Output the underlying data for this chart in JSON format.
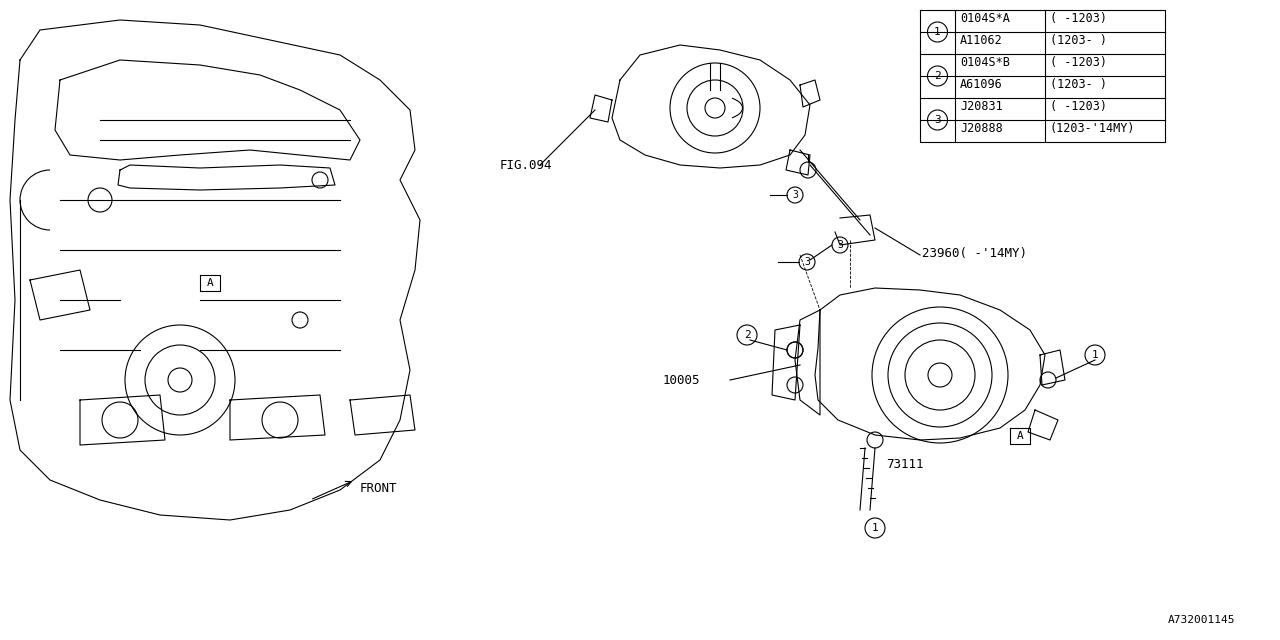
{
  "bg_color": "#ffffff",
  "line_color": "#000000",
  "title_ref": "A732001145",
  "table": {
    "num_col": [
      "1",
      "1",
      "2",
      "2",
      "3",
      "3"
    ],
    "part_col": [
      "0104S*A",
      "A11062",
      "0104S*B",
      "A61096",
      "J20831",
      "J20888"
    ],
    "range_col": [
      "( -1203)",
      "(1203- )",
      "( -1203)",
      "(1203- )",
      "( -1203)",
      "(1203-'14MY)"
    ]
  },
  "labels": {
    "fig094": "FIG.094",
    "label10005": "10005",
    "label73111": "73111",
    "label23960": "23960( -'14MY)",
    "front": "FRONT",
    "label_A_engine": "A",
    "label_A_comp": "A"
  },
  "font_size": 9,
  "lw": 0.8
}
